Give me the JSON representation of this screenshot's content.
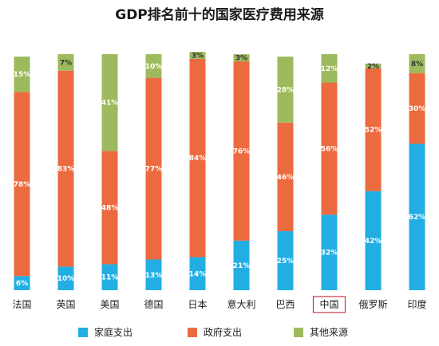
{
  "chart_data": {
    "type": "bar",
    "stacked": true,
    "title": "GDP排名前十的国家医疗费用来源",
    "categories": [
      "法国",
      "英国",
      "美国",
      "德国",
      "日本",
      "意大利",
      "巴西",
      "中国",
      "俄罗斯",
      "印度"
    ],
    "highlight_category": "中国",
    "series": [
      {
        "name": "家庭支出",
        "color": "#22aee3",
        "values": [
          6,
          10,
          11,
          13,
          14,
          21,
          25,
          32,
          42,
          62
        ]
      },
      {
        "name": "政府支出",
        "color": "#ec6a3f",
        "values": [
          78,
          83,
          48,
          77,
          84,
          76,
          46,
          56,
          52,
          30
        ]
      },
      {
        "name": "其他来源",
        "color": "#9dba5e",
        "values": [
          15,
          7,
          41,
          10,
          3,
          3,
          28,
          12,
          2,
          8
        ]
      }
    ],
    "value_labels": [
      [
        "6%",
        "10%",
        "11%",
        "13%",
        "14%",
        "21%",
        "25%",
        "32%",
        "42%",
        "62%"
      ],
      [
        "78%",
        "83%",
        "48%",
        "77%",
        "84%",
        "76%",
        "46%",
        "56%",
        "52%",
        "30%"
      ],
      [
        "15%",
        "7%",
        "41%",
        "10%",
        "3%",
        "3%",
        "28%",
        "12%",
        "2%",
        "8%"
      ]
    ],
    "ylim": [
      0,
      100
    ],
    "grid": false,
    "legend_position": "bottom"
  }
}
